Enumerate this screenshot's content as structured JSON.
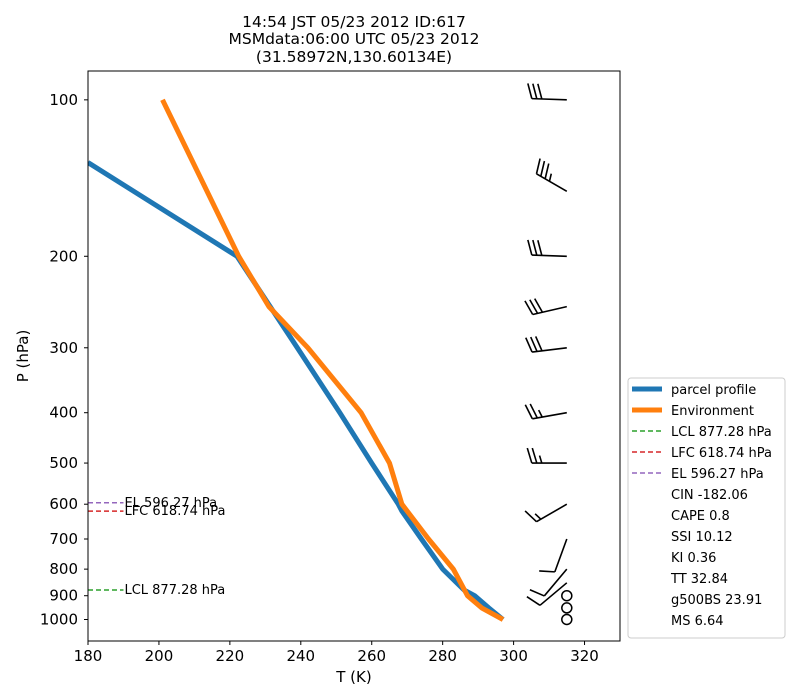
{
  "title_lines": [
    "14:54 JST 05/23 2012  ID:617",
    "MSMdata:06:00 UTC 05/23 2012",
    "(31.58972N,130.60134E)"
  ],
  "chart_data": {
    "type": "line",
    "xlabel": "T (K)",
    "ylabel": "P (hPa)",
    "xlim": [
      180,
      330
    ],
    "ylim": [
      1100,
      88
    ],
    "y_scale": "log",
    "x_ticks": [
      180,
      200,
      220,
      240,
      260,
      280,
      300,
      320
    ],
    "y_ticks": [
      100,
      200,
      300,
      400,
      500,
      600,
      700,
      800,
      900,
      1000
    ],
    "series": [
      {
        "name": "parcel profile",
        "color": "#1f77b4",
        "points": [
          [
            297,
            1000
          ],
          [
            293,
            950
          ],
          [
            289,
            900
          ],
          [
            286,
            877.28
          ],
          [
            280,
            800
          ],
          [
            274,
            700
          ],
          [
            268.5,
            618.74
          ],
          [
            267.5,
            600
          ],
          [
            260,
            500
          ],
          [
            251,
            400
          ],
          [
            239,
            300
          ],
          [
            222,
            200
          ],
          [
            180,
            132
          ]
        ]
      },
      {
        "name": "Environment",
        "color": "#ff7f0e",
        "points": [
          [
            297,
            1000
          ],
          [
            291,
            950
          ],
          [
            287,
            900
          ],
          [
            283,
            800
          ],
          [
            276,
            700
          ],
          [
            268.5,
            600
          ],
          [
            265,
            500
          ],
          [
            257,
            400
          ],
          [
            242,
            300
          ],
          [
            231,
            250
          ],
          [
            222.5,
            200
          ],
          [
            201,
            100
          ]
        ]
      }
    ],
    "levels": [
      {
        "name": "LCL",
        "pressure": 877.28,
        "label": "LCL 877.28 hPa",
        "color": "#2ca02c"
      },
      {
        "name": "LFC",
        "pressure": 618.74,
        "label": "LFC 618.74 hPa",
        "color": "#d62728"
      },
      {
        "name": "EL",
        "pressure": 596.27,
        "label": "EL 596.27 hPa",
        "color": "#9467bd"
      }
    ],
    "wind_barbs": [
      {
        "pressure": 100,
        "direction": 272,
        "speed": 30
      },
      {
        "pressure": 150,
        "direction": 300,
        "speed": 35
      },
      {
        "pressure": 200,
        "direction": 272,
        "speed": 30
      },
      {
        "pressure": 250,
        "direction": 257,
        "speed": 30
      },
      {
        "pressure": 300,
        "direction": 263,
        "speed": 30
      },
      {
        "pressure": 400,
        "direction": 260,
        "speed": 25
      },
      {
        "pressure": 500,
        "direction": 270,
        "speed": 25
      },
      {
        "pressure": 600,
        "direction": 240,
        "speed": 15
      },
      {
        "pressure": 700,
        "direction": 200,
        "speed": 10
      },
      {
        "pressure": 800,
        "direction": 220,
        "speed": 10
      },
      {
        "pressure": 850,
        "direction": 230,
        "speed": 10
      },
      {
        "pressure": 900,
        "direction": 0,
        "speed": 0
      },
      {
        "pressure": 950,
        "direction": 0,
        "speed": 0
      },
      {
        "pressure": 1000,
        "direction": 0,
        "speed": 0
      }
    ],
    "legend": {
      "placement": "lower-right-outside",
      "entries": [
        {
          "label": "parcel profile",
          "style": "thick",
          "color": "#1f77b4"
        },
        {
          "label": "Environment",
          "style": "thick",
          "color": "#ff7f0e"
        },
        {
          "label": "LCL 877.28 hPa",
          "style": "dashed",
          "color": "#2ca02c"
        },
        {
          "label": "LFC 618.74 hPa",
          "style": "dashed",
          "color": "#d62728"
        },
        {
          "label": "EL 596.27 hPa",
          "style": "dashed",
          "color": "#9467bd"
        },
        {
          "label": "CIN -182.06",
          "style": "none",
          "color": ""
        },
        {
          "label": "CAPE 0.8",
          "style": "none",
          "color": ""
        },
        {
          "label": "SSI 10.12",
          "style": "none",
          "color": ""
        },
        {
          "label": "KI 0.36",
          "style": "none",
          "color": ""
        },
        {
          "label": "TT 32.84",
          "style": "none",
          "color": ""
        },
        {
          "label": "g500BS 23.91",
          "style": "none",
          "color": ""
        },
        {
          "label": "MS 6.64",
          "style": "none",
          "color": ""
        }
      ]
    }
  }
}
